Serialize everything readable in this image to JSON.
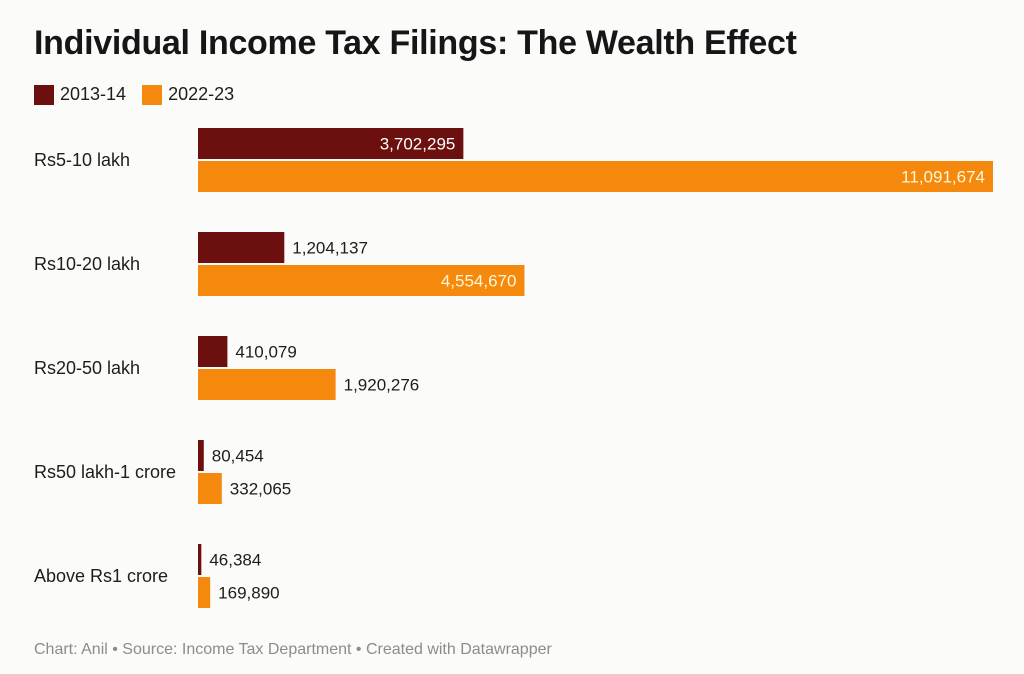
{
  "title": "Individual Income Tax Filings: The Wealth Effect",
  "footer": "Chart: Anil • Source: Income Tax Department • Created with Datawrapper",
  "colors": {
    "series_2013": "#6b0f0f",
    "series_2022": "#f5890d"
  },
  "chart_data": {
    "type": "bar",
    "orientation": "horizontal",
    "title": "Individual Income Tax Filings: The Wealth Effect",
    "categories": [
      "Rs5-10 lakh",
      "Rs10-20 lakh",
      "Rs20-50 lakh",
      "Rs50 lakh-1 crore",
      "Above Rs1 crore"
    ],
    "series": [
      {
        "name": "2013-14",
        "color": "#6b0f0f",
        "values": [
          3702295,
          1204137,
          410079,
          80454,
          46384
        ],
        "labels": [
          "3,702,295",
          "1,204,137",
          "410,079",
          "80,454",
          "46,384"
        ]
      },
      {
        "name": "2022-23",
        "color": "#f5890d",
        "values": [
          11091674,
          4554670,
          1920276,
          332065,
          169890
        ],
        "labels": [
          "11,091,674",
          "4,554,670",
          "1,920,276",
          "332,065",
          "169,890"
        ]
      }
    ],
    "legend": "top-left",
    "grid": false
  }
}
